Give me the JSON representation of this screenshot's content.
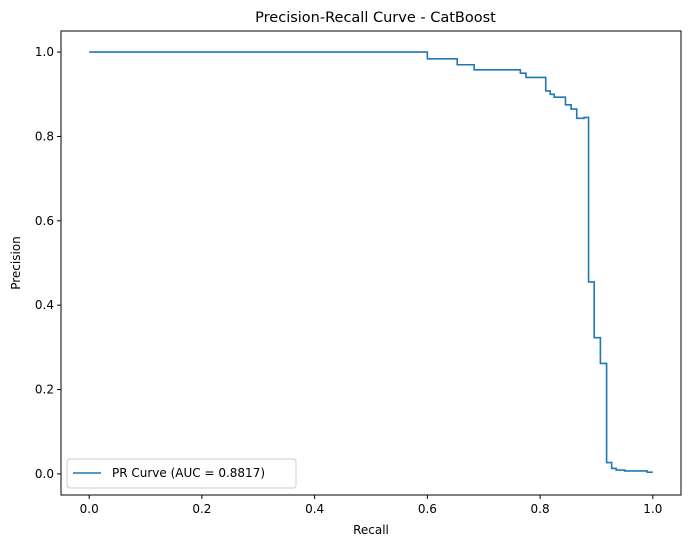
{
  "chart_data": {
    "type": "line",
    "title": "Precision-Recall Curve - CatBoost",
    "xlabel": "Recall",
    "ylabel": "Precision",
    "xlim": [
      -0.05,
      1.05
    ],
    "ylim": [
      -0.05,
      1.05
    ],
    "xticks": [
      0.0,
      0.2,
      0.4,
      0.6,
      0.8,
      1.0
    ],
    "xtick_labels": [
      "0.0",
      "0.2",
      "0.4",
      "0.6",
      "0.8",
      "1.0"
    ],
    "yticks": [
      0.0,
      0.2,
      0.4,
      0.6,
      0.8,
      1.0
    ],
    "ytick_labels": [
      "0.0",
      "0.2",
      "0.4",
      "0.6",
      "0.8",
      "1.0"
    ],
    "grid": false,
    "legend_position": "lower-left",
    "series": [
      {
        "name": "PR Curve (AUC = 0.8817)",
        "color": "#1f77b4",
        "drawstyle": "steps",
        "x": [
          0.0,
          0.6,
          0.6,
          0.653,
          0.653,
          0.683,
          0.683,
          0.765,
          0.765,
          0.775,
          0.775,
          0.81,
          0.81,
          0.818,
          0.818,
          0.825,
          0.825,
          0.845,
          0.845,
          0.855,
          0.855,
          0.865,
          0.865,
          0.878,
          0.878,
          0.886,
          0.886,
          0.896,
          0.896,
          0.907,
          0.907,
          0.918,
          0.918,
          0.927,
          0.927,
          0.935,
          0.935,
          0.95,
          0.95,
          0.99,
          0.99,
          1.0
        ],
        "y": [
          1.0,
          1.0,
          0.984,
          0.984,
          0.97,
          0.97,
          0.958,
          0.958,
          0.95,
          0.95,
          0.94,
          0.94,
          0.908,
          0.908,
          0.9,
          0.9,
          0.893,
          0.893,
          0.875,
          0.875,
          0.865,
          0.865,
          0.843,
          0.843,
          0.845,
          0.845,
          0.455,
          0.455,
          0.323,
          0.323,
          0.262,
          0.262,
          0.027,
          0.027,
          0.013,
          0.013,
          0.009,
          0.009,
          0.007,
          0.007,
          0.004,
          0.004
        ]
      }
    ]
  }
}
